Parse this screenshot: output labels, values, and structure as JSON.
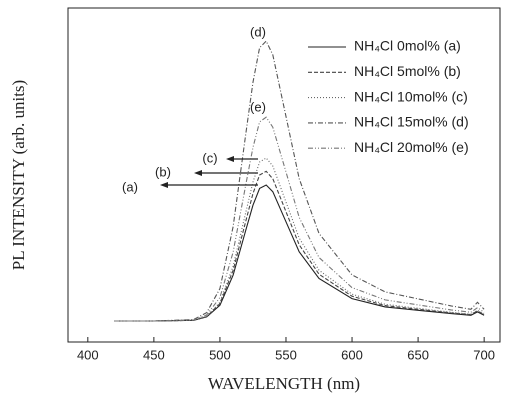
{
  "chart_data": {
    "type": "line",
    "xlabel": "WAVELENGTH (nm)",
    "ylabel": "PL INTENSITY (arb. units)",
    "x": [
      420,
      450,
      480,
      490,
      500,
      510,
      520,
      525,
      530,
      535,
      540,
      550,
      560,
      575,
      600,
      625,
      650,
      675,
      690,
      695,
      700
    ],
    "series": [
      {
        "name": "NH₄Cl 0mol% (a)",
        "color": "#222222",
        "style": "solid",
        "values": [
          6.3,
          6.3,
          6.5,
          7.5,
          11,
          20,
          34,
          41,
          46,
          47,
          45,
          36,
          27,
          19,
          13,
          10.5,
          9.5,
          8.5,
          8,
          9,
          8
        ]
      },
      {
        "name": "NH₄Cl 5mol% (b)",
        "color": "#444444",
        "style": "dashed",
        "values": [
          6.3,
          6.3,
          6.5,
          7.6,
          11.5,
          21.4,
          36.8,
          44.5,
          50,
          51.1,
          48.9,
          39,
          29.1,
          20.3,
          13.7,
          10.9,
          9.8,
          8.7,
          8.2,
          9.3,
          8.2
        ]
      },
      {
        "name": "NH₄Cl 10mol% (c)",
        "color": "#666666",
        "style": "dotted",
        "values": [
          6.3,
          6.3,
          6.5,
          7.7,
          11.9,
          22.7,
          39.5,
          47.9,
          53.9,
          55.1,
          52.7,
          41.9,
          31.1,
          21.5,
          14.3,
          11.3,
          10.1,
          8.9,
          8.3,
          9.5,
          8.3
        ]
      },
      {
        "name": "NH₄Cl 15mol% (d)",
        "color": "#555555",
        "style": "dashdot",
        "values": [
          6.3,
          6.3,
          6.7,
          8.8,
          16,
          34.5,
          63.4,
          77.8,
          88.1,
          90.1,
          86,
          67.5,
          48.9,
          32.5,
          20.1,
          15,
          12.9,
          10.8,
          9.8,
          11.9,
          9.8
        ]
      },
      {
        "name": "NH₄Cl 20mol% (e)",
        "color": "#777777",
        "style": "dashdotdot",
        "values": [
          6.3,
          6.3,
          6.6,
          8.1,
          13.3,
          26.9,
          47.9,
          58.3,
          65.9,
          67.3,
          64.3,
          50.9,
          37.3,
          25.3,
          16.3,
          12.6,
          11.1,
          9.6,
          8.9,
          10.3,
          8.9
        ]
      }
    ],
    "annotations": [
      "(a)",
      "(b)",
      "(c)",
      "(d)",
      "(e)"
    ],
    "xlim": [
      385,
      712
    ],
    "xticks": [
      400,
      450,
      500,
      550,
      600,
      650,
      700
    ],
    "ylim": [
      0,
      100
    ]
  }
}
